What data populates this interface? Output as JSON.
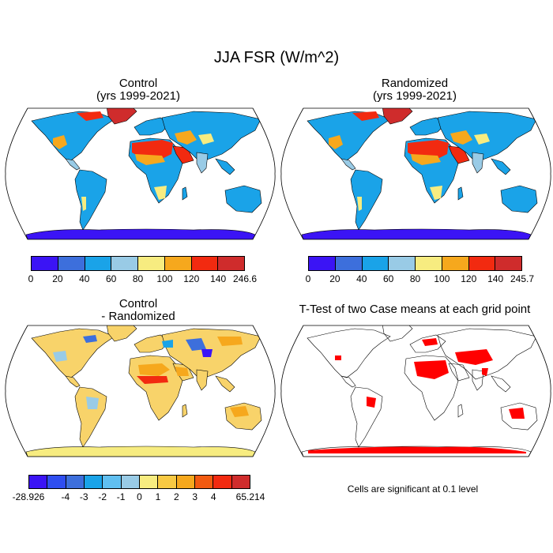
{
  "title": "JJA FSR (W/m^2)",
  "panels": [
    {
      "title_line1": "Control",
      "title_line2": "(yrs 1999-2021)"
    },
    {
      "title_line1": "Randomized",
      "title_line2": "(yrs 1999-2021)"
    },
    {
      "title_line1": "Control",
      "title_line2": "- Randomized"
    },
    {
      "title_line1": "T-Test of two Case means at each grid point",
      "title_line2": ""
    }
  ],
  "colorbars": [
    {
      "labels": [
        "0",
        "20",
        "40",
        "60",
        "80",
        "100",
        "120",
        "140",
        "246.6"
      ],
      "colors": [
        "#3b14f5",
        "#3d6fdc",
        "#1aa3e8",
        "#99cbe6",
        "#f7ec80",
        "#f6a81d",
        "#f22a10",
        "#cf2c2c"
      ]
    },
    {
      "labels": [
        "0",
        "20",
        "40",
        "60",
        "80",
        "100",
        "120",
        "140",
        "245.7"
      ],
      "colors": [
        "#3b14f5",
        "#3d6fdc",
        "#1aa3e8",
        "#99cbe6",
        "#f7ec80",
        "#f6a81d",
        "#f22a10",
        "#cf2c2c"
      ]
    },
    {
      "labels": [
        "-28.926",
        "-4",
        "-3",
        "-2",
        "-1",
        "0",
        "1",
        "2",
        "3",
        "4",
        "65.214"
      ],
      "colors": [
        "#3b14f5",
        "#2f4ef0",
        "#3d6fdc",
        "#1aa3e8",
        "#60bff0",
        "#99cbe6",
        "#f7ec80",
        "#f8c943",
        "#f6a81d",
        "#f25a10",
        "#f22a10",
        "#cf2c2c"
      ]
    }
  ],
  "significance_note": "Cells are significant at 0.1 level",
  "map_colors": {
    "ocean": "#ffffff",
    "land_blue": "#1aa3e8",
    "land_light": "#99cbe6",
    "desert_red": "#f22a10",
    "desert_orange": "#f6a81d",
    "yellow": "#f7ec80",
    "antarctica": "#3b14f5",
    "greenland": "#cf2c2c",
    "diff_land": "#f8d36a",
    "diff_antarctica": "#f7ec80",
    "sig_red": "#ff0000"
  }
}
